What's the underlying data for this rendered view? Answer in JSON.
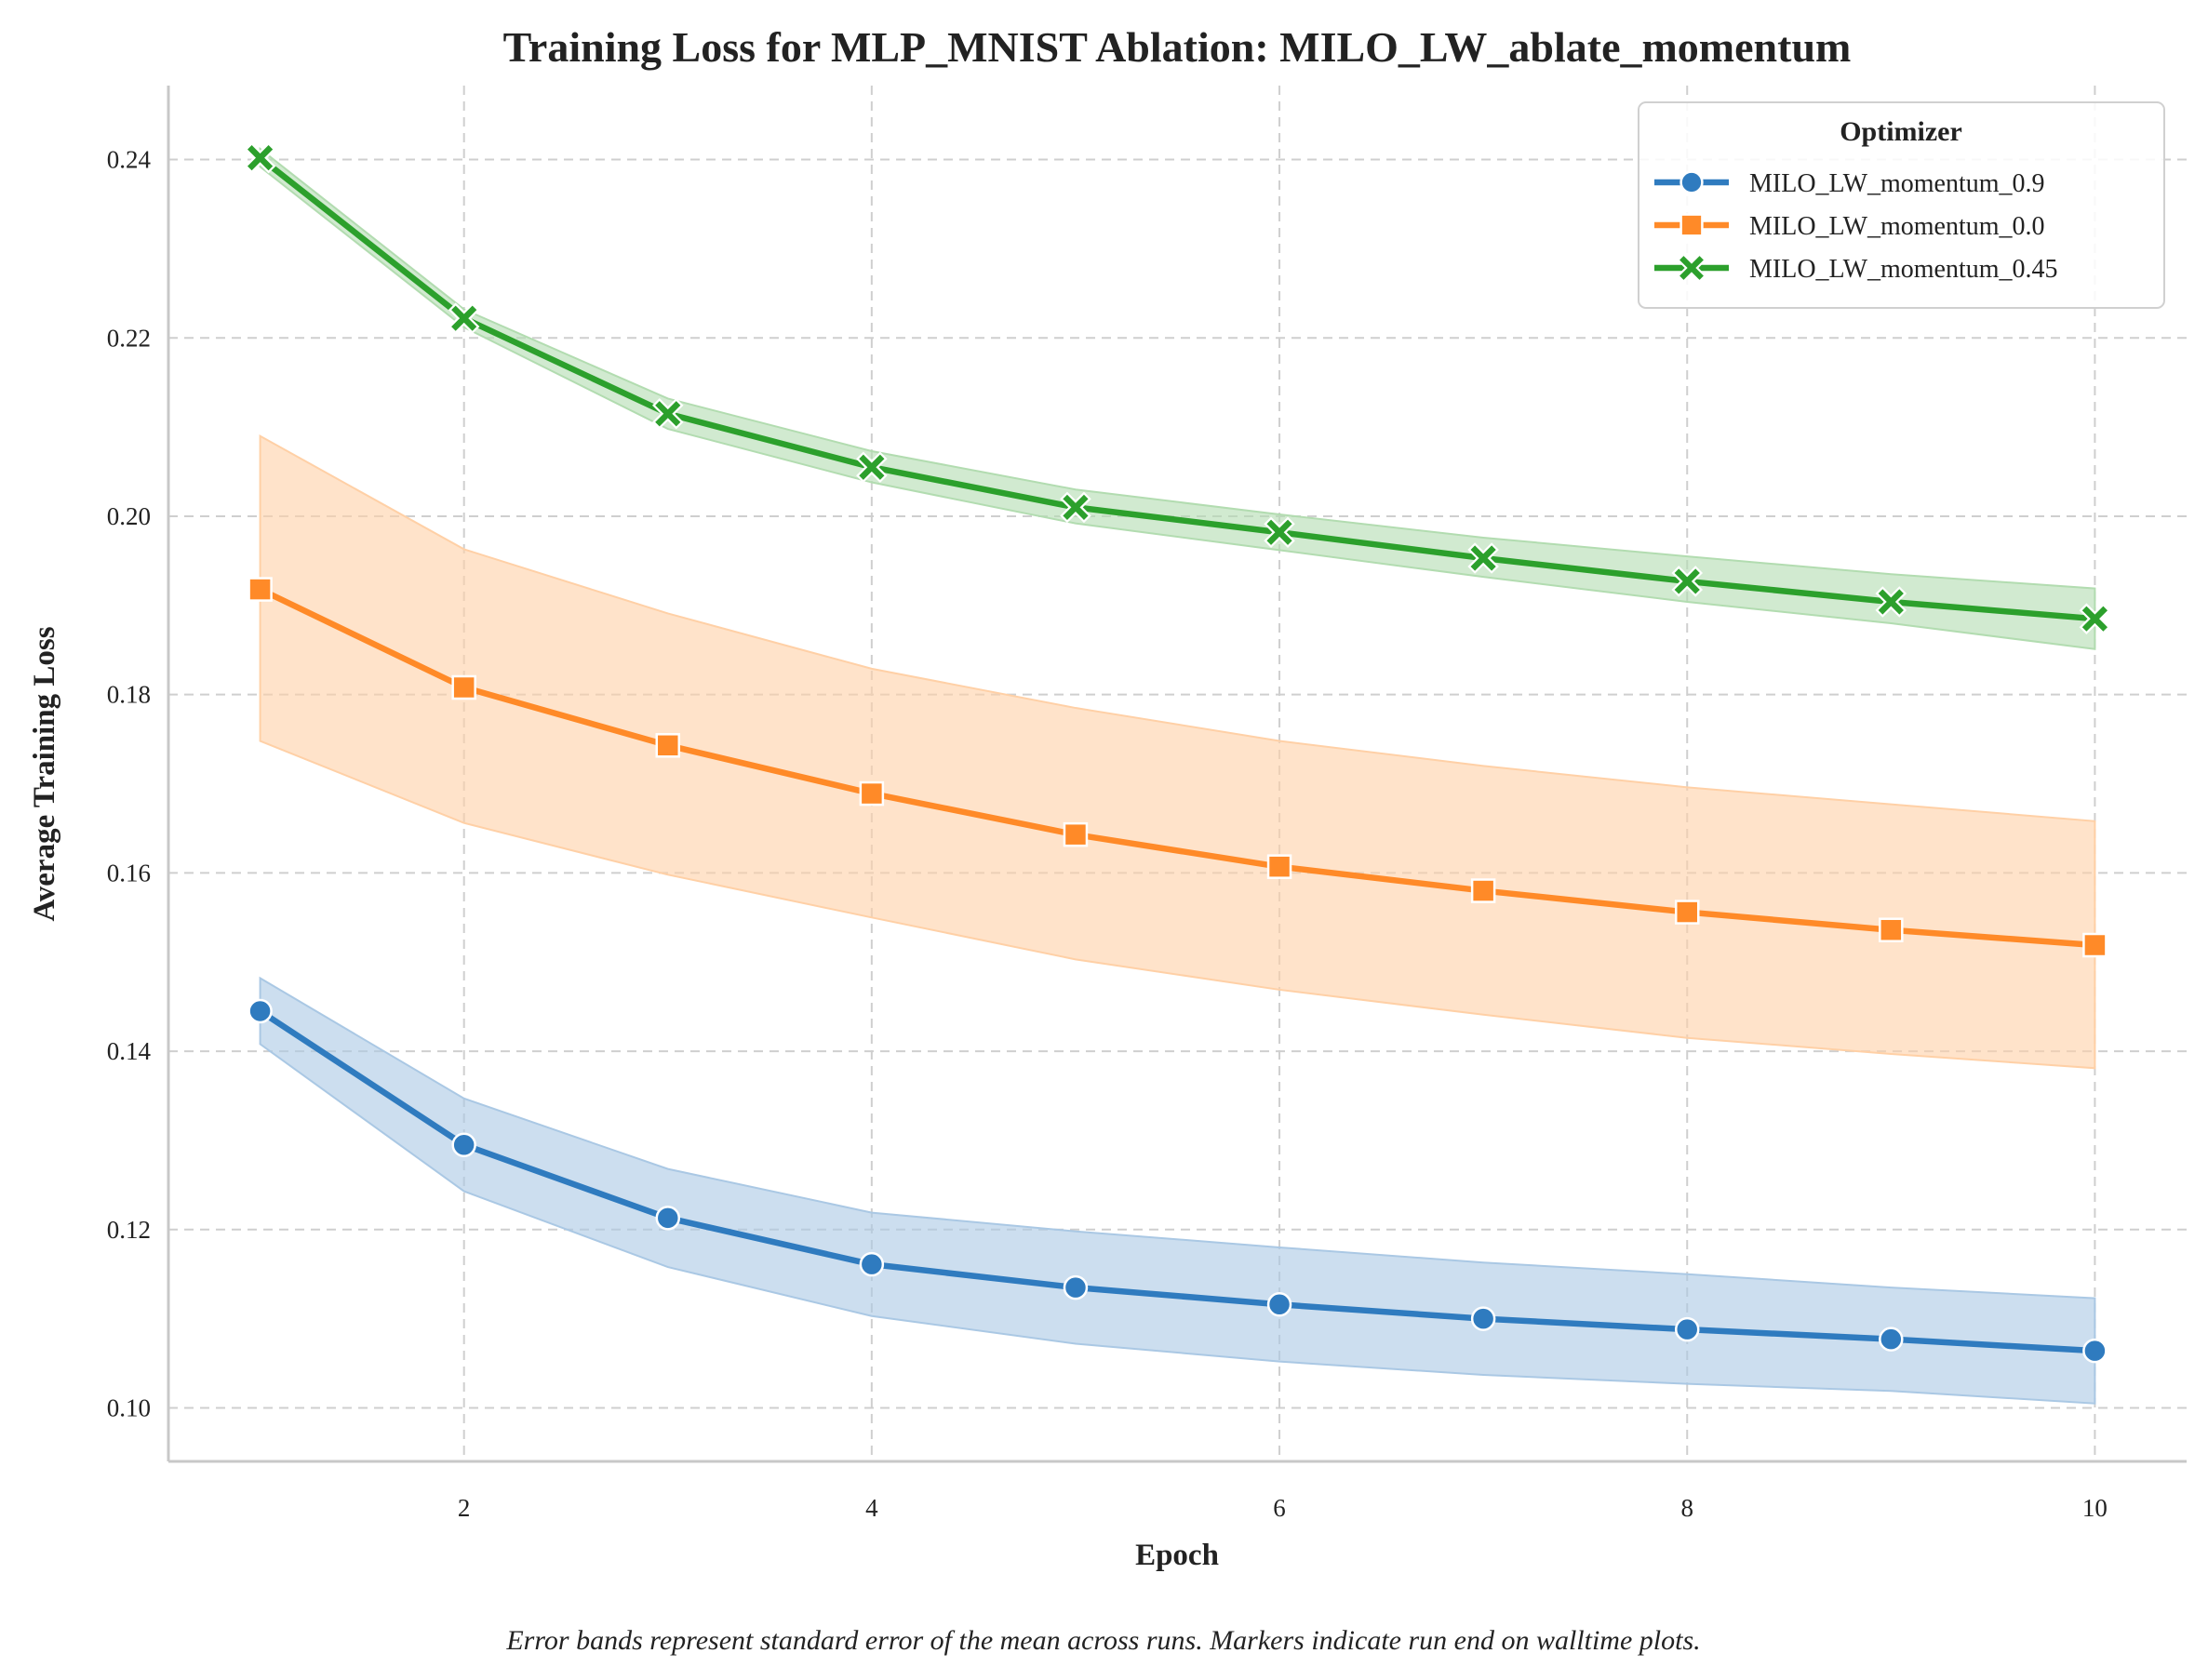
{
  "chart_data": {
    "type": "line",
    "title": "Training Loss for MLP_MNIST Ablation: MILO_LW_ablate_momentum",
    "xlabel": "Epoch",
    "ylabel": "Average Training Loss",
    "caption": "Error bands represent standard error of the mean across runs. Markers indicate run end on walltime plots.",
    "xlim": [
      0.55,
      10.45
    ],
    "ylim": [
      0.094,
      0.2483
    ],
    "x_ticks": [
      2,
      4,
      6,
      8,
      10
    ],
    "y_ticks": [
      0.1,
      0.12,
      0.14,
      0.16,
      0.18,
      0.2,
      0.22,
      0.24
    ],
    "x_tick_labels": [
      "2",
      "4",
      "6",
      "8",
      "10"
    ],
    "y_tick_labels": [
      "0.10",
      "0.12",
      "0.14",
      "0.16",
      "0.18",
      "0.20",
      "0.22",
      "0.24"
    ],
    "grid": true,
    "legend_title": "Optimizer",
    "legend_position": "top-right",
    "x": [
      1,
      2,
      3,
      4,
      5,
      6,
      7,
      8,
      9,
      10
    ],
    "series": [
      {
        "name": "MILO_LW_momentum_0.9",
        "color": "#2f7bbf",
        "band_color": "#aac8e4",
        "marker": "circle",
        "values": [
          0.1445,
          0.1295,
          0.1213,
          0.1161,
          0.1135,
          0.1116,
          0.11,
          0.1088,
          0.1077,
          0.1064
        ],
        "lower": [
          0.1408,
          0.1243,
          0.1158,
          0.1103,
          0.1072,
          0.1052,
          0.1037,
          0.1027,
          0.1019,
          0.1005
        ],
        "upper": [
          0.1482,
          0.1347,
          0.1268,
          0.1219,
          0.1198,
          0.118,
          0.1163,
          0.115,
          0.1135,
          0.1123
        ]
      },
      {
        "name": "MILO_LW_momentum_0.0",
        "color": "#ff8a28",
        "band_color": "#ffd0a6",
        "marker": "square",
        "values": [
          0.1918,
          0.1808,
          0.1743,
          0.1689,
          0.1643,
          0.1607,
          0.158,
          0.1556,
          0.1536,
          0.1519
        ],
        "lower": [
          0.1748,
          0.1656,
          0.1598,
          0.155,
          0.1503,
          0.1469,
          0.1441,
          0.1415,
          0.1397,
          0.1381
        ],
        "upper": [
          0.209,
          0.1963,
          0.1891,
          0.1829,
          0.1785,
          0.1748,
          0.172,
          0.1696,
          0.1677,
          0.1658
        ]
      },
      {
        "name": "MILO_LW_momentum_0.45",
        "color": "#2ca02c",
        "band_color": "#b2dcb0",
        "marker": "x",
        "values": [
          0.2402,
          0.2222,
          0.2115,
          0.2055,
          0.201,
          0.1982,
          0.1953,
          0.1927,
          0.1904,
          0.1885
        ],
        "lower": [
          0.2392,
          0.2212,
          0.2098,
          0.2038,
          0.1992,
          0.1962,
          0.1932,
          0.1904,
          0.188,
          0.1851
        ],
        "upper": [
          0.2412,
          0.2232,
          0.2132,
          0.2073,
          0.203,
          0.2002,
          0.1976,
          0.1955,
          0.1935,
          0.1919
        ]
      }
    ]
  }
}
